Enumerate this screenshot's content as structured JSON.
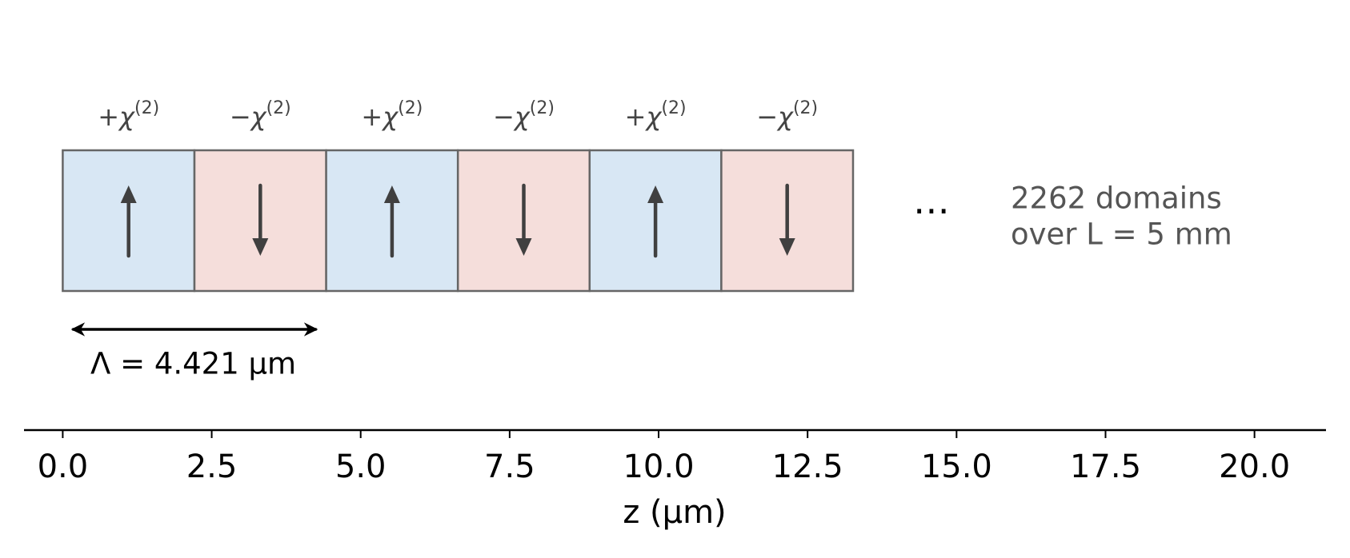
{
  "diagram": {
    "domain_edges": [
      0,
      2.2105,
      4.421,
      6.6315,
      8.842,
      11.0525,
      13.263
    ],
    "domains": [
      {
        "label": "+χ",
        "superscript": "(2)",
        "direction": "up",
        "color": "#d8e7f4"
      },
      {
        "label": "−χ",
        "superscript": "(2)",
        "direction": "down",
        "color": "#f5dedb"
      },
      {
        "label": "+χ",
        "superscript": "(2)",
        "direction": "up",
        "color": "#d8e7f4"
      },
      {
        "label": "−χ",
        "superscript": "(2)",
        "direction": "down",
        "color": "#f5dedb"
      },
      {
        "label": "+χ",
        "superscript": "(2)",
        "direction": "up",
        "color": "#d8e7f4"
      },
      {
        "label": "−χ",
        "superscript": "(2)",
        "direction": "down",
        "color": "#f5dedb"
      }
    ],
    "period": 4.421,
    "period_label": "Λ = 4.421 μm",
    "ellipsis": "⋯",
    "note": [
      "2262 domains",
      "over L = 5 mm"
    ],
    "xlabel": "z (μm)",
    "xlim": [
      -0.65,
      21.2
    ],
    "xticks": [
      {
        "value": 0,
        "label": "0.0"
      },
      {
        "value": 2.5,
        "label": "2.5"
      },
      {
        "value": 5,
        "label": "5.0"
      },
      {
        "value": 7.5,
        "label": "7.5"
      },
      {
        "value": 10,
        "label": "10.0"
      },
      {
        "value": 12.5,
        "label": "12.5"
      },
      {
        "value": 15,
        "label": "15.0"
      },
      {
        "value": 17.5,
        "label": "17.5"
      },
      {
        "value": 20,
        "label": "20.0"
      }
    ]
  }
}
